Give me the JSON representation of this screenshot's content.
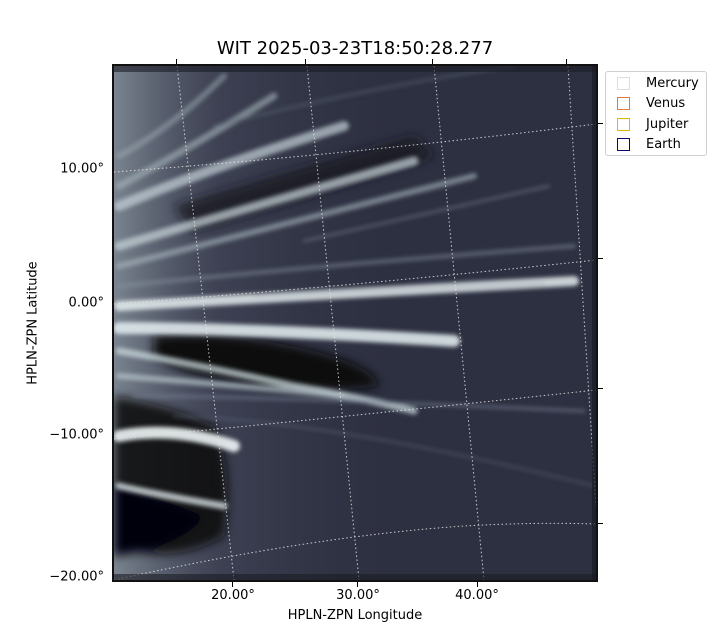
{
  "title": "WIT 2025-03-23T18:50:28.277",
  "axes": {
    "xlabel": "HPLN-ZPN Longitude",
    "ylabel": "HPLN-ZPN Latitude",
    "x_ticks": [
      "20.00°",
      "30.00°",
      "40.00°"
    ],
    "y_ticks": [
      "10.00°",
      "0.00°",
      "−10.00°",
      "−20.00°"
    ]
  },
  "legend": [
    {
      "label": "Mercury",
      "color": "#dddddd"
    },
    {
      "label": "Venus",
      "color": "#e07b39"
    },
    {
      "label": "Jupiter",
      "color": "#e8b400"
    },
    {
      "label": "Earth",
      "color": "#0a0a6e"
    }
  ],
  "image": {
    "colormap": "bone",
    "background_color": "#2b2e3e"
  }
}
